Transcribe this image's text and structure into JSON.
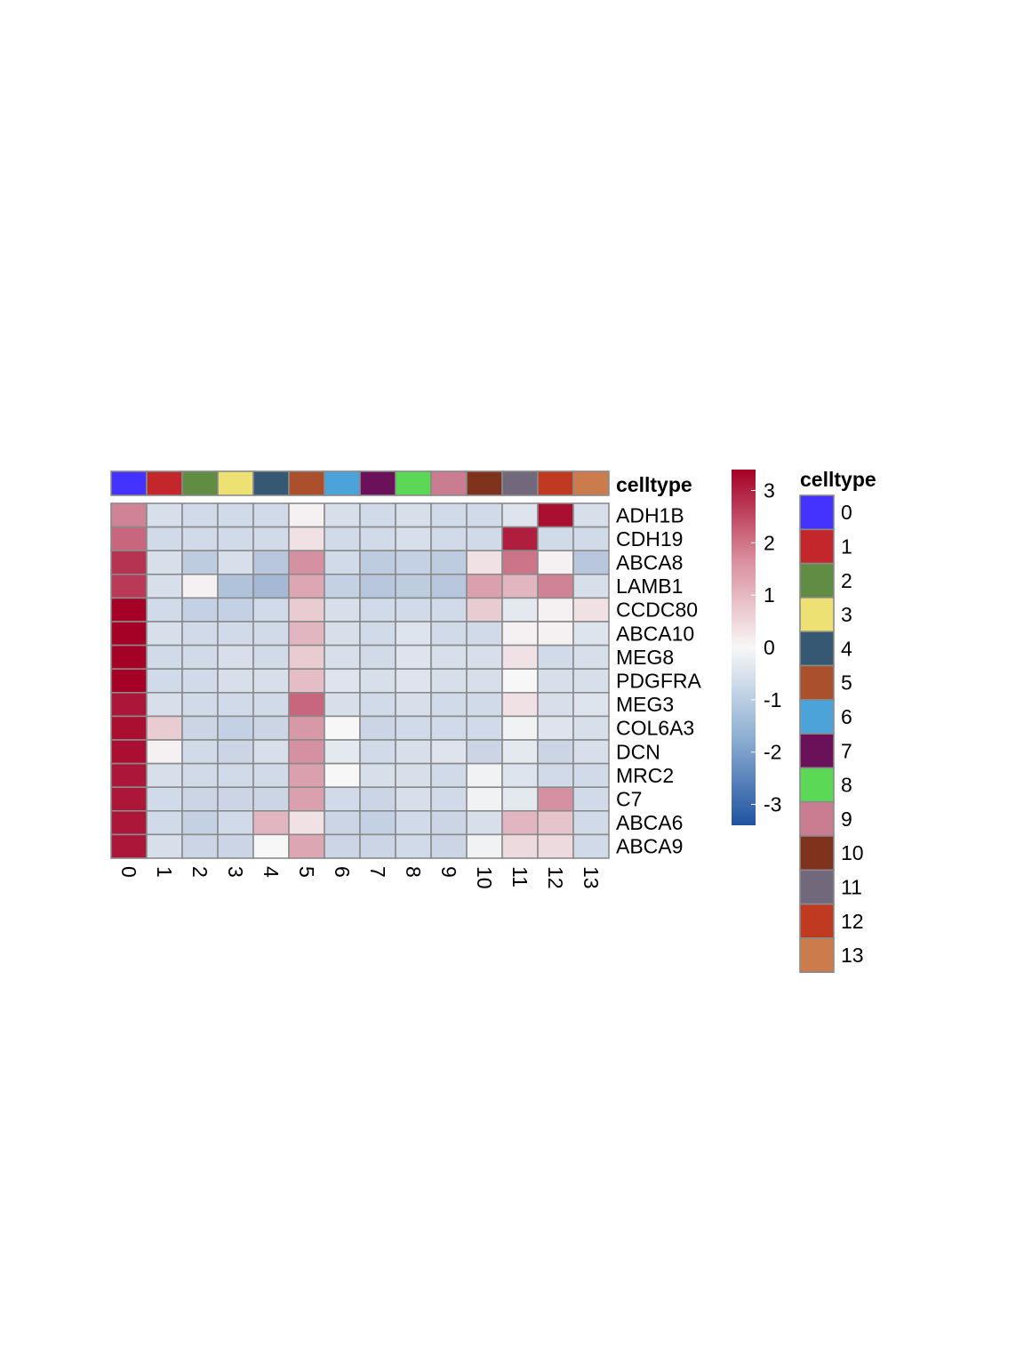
{
  "chart_data": {
    "type": "heatmap",
    "annotation_title": "celltype",
    "legend_title": "celltype",
    "columns": [
      "0",
      "1",
      "2",
      "3",
      "4",
      "5",
      "6",
      "7",
      "8",
      "9",
      "10",
      "11",
      "12",
      "13"
    ],
    "rows": [
      "ADH1B",
      "CDH19",
      "ABCA8",
      "LAMB1",
      "CCDC80",
      "ABCA10",
      "MEG8",
      "PDGFRA",
      "MEG3",
      "COL6A3",
      "DCN",
      "MRC2",
      "C7",
      "ABCA6",
      "ABCA9"
    ],
    "values": [
      [
        1.6,
        -0.5,
        -0.6,
        -0.6,
        -0.6,
        0.1,
        -0.5,
        -0.6,
        -0.5,
        -0.6,
        -0.6,
        -0.4,
        3.2,
        -0.5
      ],
      [
        2.0,
        -0.6,
        -0.6,
        -0.6,
        -0.6,
        0.3,
        -0.6,
        -0.6,
        -0.5,
        -0.6,
        -0.6,
        3.0,
        -0.6,
        -0.6
      ],
      [
        2.7,
        -0.5,
        -0.9,
        -0.5,
        -1.0,
        1.4,
        -0.6,
        -0.9,
        -0.8,
        -0.9,
        0.3,
        1.8,
        0.1,
        -1.0
      ],
      [
        2.6,
        -0.5,
        0.1,
        -1.1,
        -1.3,
        1.1,
        -0.8,
        -1.0,
        -0.9,
        -1.0,
        1.2,
        0.9,
        1.6,
        -0.5
      ],
      [
        3.4,
        -0.6,
        -0.8,
        -0.8,
        -0.6,
        0.6,
        -0.5,
        -0.6,
        -0.6,
        -0.6,
        0.6,
        -0.3,
        0.1,
        0.3
      ],
      [
        3.4,
        -0.5,
        -0.6,
        -0.6,
        -0.6,
        0.9,
        -0.5,
        -0.6,
        -0.4,
        -0.6,
        -0.6,
        0.1,
        0.1,
        -0.4
      ],
      [
        3.4,
        -0.6,
        -0.6,
        -0.5,
        -0.6,
        0.6,
        -0.5,
        -0.6,
        -0.4,
        -0.5,
        -0.5,
        0.3,
        -0.6,
        -0.5
      ],
      [
        3.4,
        -0.6,
        -0.6,
        -0.5,
        -0.5,
        0.8,
        -0.4,
        -0.5,
        -0.4,
        -0.5,
        -0.5,
        0.0,
        -0.5,
        -0.5
      ],
      [
        3.1,
        -0.5,
        -0.6,
        -0.6,
        -0.6,
        2.0,
        -0.5,
        -0.6,
        -0.5,
        -0.6,
        -0.6,
        0.3,
        -0.5,
        -0.4
      ],
      [
        3.2,
        0.6,
        -0.7,
        -0.8,
        -0.7,
        1.3,
        0.0,
        -0.7,
        -0.6,
        -0.6,
        -0.6,
        -0.1,
        -0.4,
        -0.5
      ],
      [
        3.2,
        0.1,
        -0.6,
        -0.7,
        -0.5,
        1.4,
        -0.3,
        -0.6,
        -0.5,
        -0.4,
        -0.7,
        -0.3,
        -0.7,
        -0.5
      ],
      [
        3.1,
        -0.5,
        -0.6,
        -0.6,
        -0.6,
        1.2,
        0.0,
        -0.5,
        -0.5,
        -0.6,
        -0.1,
        -0.4,
        -0.6,
        -0.6
      ],
      [
        3.1,
        -0.6,
        -0.7,
        -0.7,
        -0.7,
        1.2,
        -0.6,
        -0.7,
        -0.5,
        -0.6,
        -0.1,
        -0.3,
        1.4,
        -0.6
      ],
      [
        3.1,
        -0.6,
        -0.8,
        -0.6,
        0.9,
        0.3,
        -0.7,
        -0.8,
        -0.6,
        -0.7,
        -0.5,
        0.9,
        0.7,
        -0.6
      ],
      [
        3.1,
        -0.5,
        -0.7,
        -0.7,
        0.0,
        1.1,
        -0.7,
        -0.7,
        -0.6,
        -0.7,
        -0.1,
        0.4,
        0.4,
        -0.6
      ]
    ],
    "color_scale": {
      "min": -3.4,
      "max": 3.4,
      "low": "#2053a0",
      "mid": "#f7f7f7",
      "high": "#a50026"
    },
    "colorbar_ticks": [
      3,
      2,
      1,
      0,
      -1,
      -2,
      -3
    ],
    "celltype_colors": {
      "0": "#4433ff",
      "1": "#c4272b",
      "2": "#618c44",
      "3": "#ede174",
      "4": "#365873",
      "5": "#ab4f2c",
      "6": "#4ba3d9",
      "7": "#6a115a",
      "8": "#5bd856",
      "9": "#ca7c90",
      "10": "#7f331d",
      "11": "#72687c",
      "12": "#bf3a20",
      "13": "#cc7c4c"
    }
  }
}
